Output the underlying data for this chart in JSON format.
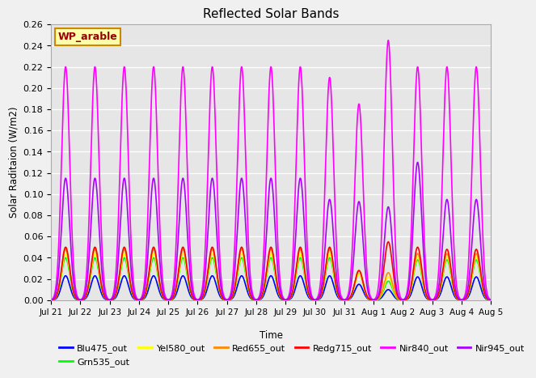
{
  "title": "Reflected Solar Bands",
  "xlabel": "Time",
  "ylabel": "Solar Raditaion (W/m2)",
  "annotation": "WP_arable",
  "ylim": [
    0,
    0.26
  ],
  "yticks": [
    0.0,
    0.02,
    0.04,
    0.06,
    0.08,
    0.1,
    0.12,
    0.14,
    0.16,
    0.18,
    0.2,
    0.22,
    0.24,
    0.26
  ],
  "xtick_labels": [
    "Jul 21",
    "Jul 22",
    "Jul 23",
    "Jul 24",
    "Jul 25",
    "Jul 26",
    "Jul 27",
    "Jul 28",
    "Jul 29",
    "Jul 30",
    "Jul 31",
    "Aug 1",
    "Aug 2",
    "Aug 3",
    "Aug 4",
    "Aug 5"
  ],
  "n_days": 15,
  "n_pts_per_day": 144,
  "series_order": [
    "Blu475_out",
    "Grn535_out",
    "Yel580_out",
    "Red655_out",
    "Redg715_out",
    "Nir840_out",
    "Nir945_out"
  ],
  "series": {
    "Blu475_out": {
      "color": "#0000ff",
      "lw": 1.2,
      "peak": 0.023,
      "sigma": 0.14
    },
    "Grn535_out": {
      "color": "#00ff00",
      "lw": 1.2,
      "peak": 0.04,
      "sigma": 0.14
    },
    "Yel580_out": {
      "color": "#ffff00",
      "lw": 1.2,
      "peak": 0.044,
      "sigma": 0.14
    },
    "Red655_out": {
      "color": "#ff8800",
      "lw": 1.2,
      "peak": 0.048,
      "sigma": 0.14
    },
    "Redg715_out": {
      "color": "#ff0000",
      "lw": 1.2,
      "peak": 0.05,
      "sigma": 0.14
    },
    "Nir840_out": {
      "color": "#ff00ff",
      "lw": 1.2,
      "peak": 0.22,
      "sigma": 0.14
    },
    "Nir945_out": {
      "color": "#aa00ff",
      "lw": 1.2,
      "peak": 0.115,
      "sigma": 0.14
    }
  },
  "special_peaks": {
    "9": {
      "Nir840_out": 0.21,
      "Nir945_out": 0.095
    },
    "10": {
      "Blu475_out": 0.015,
      "Grn535_out": 0.025,
      "Yel580_out": 0.025,
      "Red655_out": 0.028,
      "Redg715_out": 0.028,
      "Nir840_out": 0.185,
      "Nir945_out": 0.093
    },
    "11": {
      "Blu475_out": 0.01,
      "Grn535_out": 0.018,
      "Yel580_out": 0.022,
      "Red655_out": 0.026,
      "Redg715_out": 0.055,
      "Nir840_out": 0.245,
      "Nir945_out": 0.088
    },
    "12": {
      "Blu475_out": 0.022,
      "Grn535_out": 0.038,
      "Yel580_out": 0.041,
      "Red655_out": 0.044,
      "Redg715_out": 0.05,
      "Nir840_out": 0.22,
      "Nir945_out": 0.13
    },
    "13": {
      "Blu475_out": 0.022,
      "Grn535_out": 0.038,
      "Yel580_out": 0.041,
      "Red655_out": 0.044,
      "Redg715_out": 0.048,
      "Nir840_out": 0.22,
      "Nir945_out": 0.095
    },
    "14": {
      "Blu475_out": 0.022,
      "Grn535_out": 0.038,
      "Yel580_out": 0.041,
      "Red655_out": 0.044,
      "Redg715_out": 0.048,
      "Nir840_out": 0.22,
      "Nir945_out": 0.095
    }
  },
  "background_color": "#f0f0f0",
  "plot_bg_color": "#e6e6e6"
}
